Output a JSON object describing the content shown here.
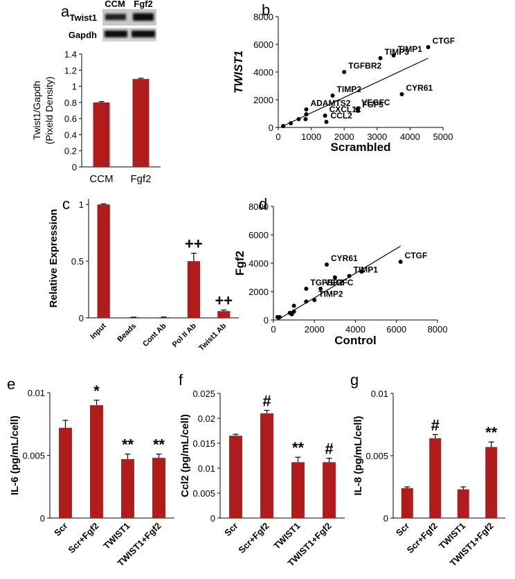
{
  "chart_data": [
    {
      "type": "bar",
      "panel": "a",
      "blot": {
        "lanes": [
          "CCM",
          "Fgf2"
        ],
        "rows": [
          "Twist1",
          "Gapdh"
        ]
      },
      "y_label": [
        "Twist1/Gapdh",
        "(Pixeld Density)"
      ],
      "categories": [
        "CCM",
        "Fgf2"
      ],
      "values": [
        0.8,
        1.09
      ],
      "errors": [
        0.01,
        0.01
      ],
      "color": "#b01c1c",
      "ylim": [
        0,
        1.4
      ],
      "yticks": [
        0,
        0.2,
        0.4,
        0.6,
        0.8,
        1,
        1.2,
        1.4
      ]
    },
    {
      "type": "scatter",
      "panel": "b",
      "y_label": "TWIST1",
      "x_label": "Scrambled",
      "x": [
        4550,
        3500,
        3100,
        2000,
        3750,
        1650,
        2400,
        2420,
        850,
        1420,
        1460,
        150,
        380,
        620,
        850,
        830
      ],
      "y": [
        5800,
        5200,
        5000,
        4000,
        2400,
        2300,
        1350,
        1200,
        1300,
        850,
        400,
        100,
        300,
        600,
        950,
        600
      ],
      "labels": [
        "CTGF",
        "TIMP1",
        "TIMP3",
        "TGFBR2",
        "CYR61",
        "TIMP2",
        "VEGFC",
        "FGF5",
        "ADAMTS2",
        "CXCL12",
        "CCL2",
        null,
        null,
        null,
        null,
        null
      ],
      "trendline": {
        "x": [
          100,
          4550
        ],
        "y": [
          50,
          5000
        ]
      },
      "color": "#000000",
      "xlim": [
        0,
        5000
      ],
      "xticks": [
        0,
        1000,
        2000,
        3000,
        4000,
        5000
      ],
      "ylim": [
        0,
        8000
      ],
      "yticks": [
        0,
        2000,
        4000,
        6000,
        8000
      ]
    },
    {
      "type": "bar",
      "panel": "c",
      "y_label": "Relative Expression",
      "categories": [
        "Input",
        "Beads",
        "Cont Ab",
        "Pol II Ab",
        "Twist1 Ab"
      ],
      "values": [
        1,
        0.005,
        0.005,
        0.5,
        0.06
      ],
      "errors": [
        0.005,
        0.002,
        0.003,
        0.07,
        0.01
      ],
      "annotations": [
        null,
        null,
        null,
        "++",
        "++"
      ],
      "color": "#b01c1c",
      "ylim": [
        0,
        1.05
      ],
      "yticks": [
        0,
        0.5,
        1
      ]
    },
    {
      "type": "scatter",
      "panel": "d",
      "y_label": "Fgf2",
      "x_label": "Control",
      "x": [
        6200,
        2600,
        3700,
        1600,
        2300,
        2000,
        3000,
        4300,
        1600,
        900,
        1000,
        1000,
        200,
        300,
        800
      ],
      "y": [
        4100,
        3900,
        3100,
        2200,
        2200,
        1400,
        3000,
        3400,
        1300,
        400,
        600,
        1000,
        200,
        200,
        500
      ],
      "labels": [
        "CTGF",
        "CYR61",
        "TIMP1",
        "TGFBR2",
        "VEGFC",
        "TIMP2",
        null,
        null,
        null,
        null,
        null,
        null,
        null,
        null,
        null
      ],
      "trendline": {
        "x": [
          200,
          6200
        ],
        "y": [
          0,
          5200
        ]
      },
      "color": "#000000",
      "xlim": [
        0,
        8000
      ],
      "xticks": [
        0,
        2000,
        4000,
        6000,
        8000
      ],
      "ylim": [
        0,
        8000
      ],
      "yticks": [
        0,
        2000,
        4000,
        6000,
        8000
      ]
    },
    {
      "type": "bar",
      "panel": "e",
      "y_label": "IL-6 (pg/mL/cell)",
      "categories": [
        "Scr",
        "Scr+Fgf2",
        "TWIST1",
        "TWIST1+Fgf2"
      ],
      "values": [
        0.0072,
        0.009,
        0.0047,
        0.0048
      ],
      "errors": [
        0.0006,
        0.0004,
        0.0004,
        0.0003
      ],
      "annotations": [
        null,
        "*",
        "**",
        "**"
      ],
      "color": "#b01c1c",
      "ylim": [
        0,
        0.01
      ],
      "yticks": [
        0,
        0.005,
        0.01
      ]
    },
    {
      "type": "bar",
      "panel": "f",
      "y_label": "Ccl2 (pg/mL/cell)",
      "categories": [
        "Scr",
        "Scr+Fgf2",
        "TWIST1",
        "TWIST1+Fgf2"
      ],
      "values": [
        0.0165,
        0.021,
        0.0112,
        0.0112
      ],
      "errors": [
        0.0003,
        0.0006,
        0.001,
        0.0008
      ],
      "annotations": [
        null,
        "#",
        "**",
        "#"
      ],
      "color": "#b01c1c",
      "ylim": [
        0,
        0.025
      ],
      "yticks": [
        0,
        0.005,
        0.01,
        0.015,
        0.02,
        0.025
      ]
    },
    {
      "type": "bar",
      "panel": "g",
      "y_label": "IL-8 (pg/mL/cell)",
      "categories": [
        "Scr",
        "Scr+Fgf2",
        "TWIST1",
        "TWIST1+Fgf2"
      ],
      "values": [
        0.0024,
        0.0064,
        0.0023,
        0.0057
      ],
      "errors": [
        0.0001,
        0.0003,
        0.0002,
        0.0004
      ],
      "annotations": [
        null,
        "#",
        null,
        "**"
      ],
      "color": "#b01c1c",
      "ylim": [
        0,
        0.01
      ],
      "yticks": [
        0,
        0.005,
        0.01
      ]
    }
  ]
}
